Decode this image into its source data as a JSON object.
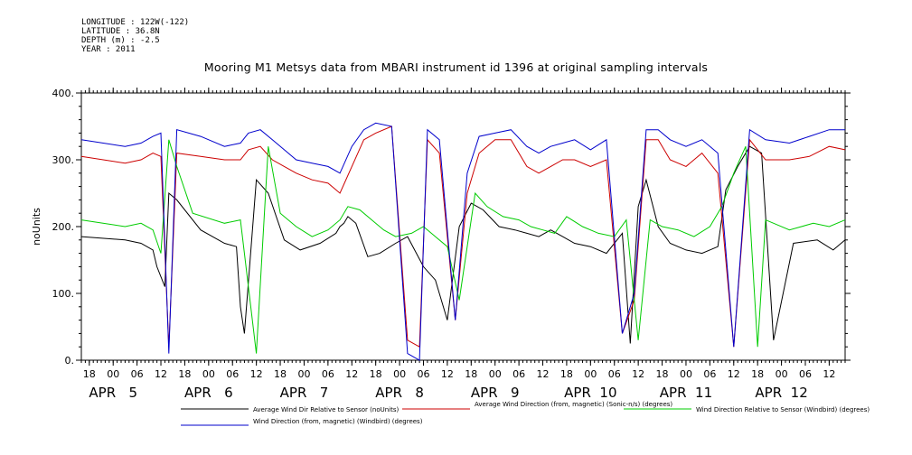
{
  "header": {
    "longitude": "LONGITUDE : 122W(-122)",
    "latitude": "LATITUDE : 36.8N",
    "depth": "DEPTH (m) : -2.5",
    "year": "YEAR : 2011",
    "title": "Mooring M1 Metsys data from MBARI instrument id 1396 at original sampling intervals"
  },
  "chart_data": {
    "type": "line",
    "title": "Mooring M1 Metsys data from MBARI instrument id 1396 at original sampling intervals",
    "ylabel": "noUnits",
    "xlabel": "",
    "ylim": [
      0,
      400
    ],
    "yticks": [
      0,
      100,
      200,
      300,
      400
    ],
    "ytick_labels": [
      "0.",
      "100.",
      "200.",
      "300.",
      "400."
    ],
    "xlim_hours": [
      "2011-04-04T16:00",
      "2011-04-12T16:00"
    ],
    "hour_tick_labels": [
      "18",
      "00",
      "06",
      "12",
      "18",
      "00",
      "06",
      "12",
      "18",
      "00",
      "06",
      "12",
      "18",
      "00",
      "06",
      "12",
      "18",
      "00",
      "06",
      "12",
      "18",
      "00",
      "06",
      "12",
      "18",
      "00",
      "06",
      "12",
      "18",
      "00",
      "06",
      "12"
    ],
    "date_labels": [
      {
        "text": "APR   5",
        "x": "2011-04-05T00:00"
      },
      {
        "text": "APR   6",
        "x": "2011-04-06T00:00"
      },
      {
        "text": "APR   7",
        "x": "2011-04-07T00:00"
      },
      {
        "text": "APR   8",
        "x": "2011-04-08T00:00"
      },
      {
        "text": "APR   9",
        "x": "2011-04-09T00:00"
      },
      {
        "text": "APR  10",
        "x": "2011-04-10T00:00"
      },
      {
        "text": "APR  11",
        "x": "2011-04-11T00:00"
      },
      {
        "text": "APR  12",
        "x": "2011-04-12T00:00"
      }
    ],
    "grid": false,
    "legend_position": "bottom",
    "series": [
      {
        "name": "Average Wind Dir Relative to Sensor (noUnits)",
        "color": "#000000",
        "x": [
          "2011-04-04T16:00",
          "2011-04-05T03:00",
          "2011-04-05T07:00",
          "2011-04-05T10:00",
          "2011-04-05T11:00",
          "2011-04-05T13:00",
          "2011-04-05T14:00",
          "2011-04-05T16:00",
          "2011-04-05T22:00",
          "2011-04-06T04:00",
          "2011-04-06T07:00",
          "2011-04-06T08:00",
          "2011-04-06T09:00",
          "2011-04-06T12:00",
          "2011-04-06T15:00",
          "2011-04-06T19:00",
          "2011-04-06T23:00",
          "2011-04-07T04:00",
          "2011-04-07T08:00",
          "2011-04-07T09:00",
          "2011-04-07T10:00",
          "2011-04-07T11:00",
          "2011-04-07T13:00",
          "2011-04-07T16:00",
          "2011-04-07T19:00",
          "2011-04-07T23:00",
          "2011-04-08T02:00",
          "2011-04-08T06:00",
          "2011-04-08T09:00",
          "2011-04-08T12:00",
          "2011-04-08T15:00",
          "2011-04-08T18:00",
          "2011-04-08T21:00",
          "2011-04-09T01:00",
          "2011-04-09T05:00",
          "2011-04-09T08:00",
          "2011-04-09T11:00",
          "2011-04-09T14:00",
          "2011-04-09T17:00",
          "2011-04-09T20:00",
          "2011-04-10T00:00",
          "2011-04-10T04:00",
          "2011-04-10T08:00",
          "2011-04-10T10:00",
          "2011-04-10T12:00",
          "2011-04-10T14:00",
          "2011-04-10T17:00",
          "2011-04-10T20:00",
          "2011-04-11T00:00",
          "2011-04-11T04:00",
          "2011-04-11T08:00",
          "2011-04-11T10:00",
          "2011-04-11T13:00",
          "2011-04-11T16:00",
          "2011-04-11T19:00",
          "2011-04-11T22:00",
          "2011-04-12T03:00",
          "2011-04-12T09:00",
          "2011-04-12T13:00",
          "2011-04-12T16:00"
        ],
        "values": [
          185,
          180,
          175,
          165,
          140,
          110,
          250,
          240,
          195,
          175,
          170,
          80,
          40,
          270,
          250,
          180,
          165,
          175,
          190,
          200,
          205,
          215,
          205,
          155,
          160,
          175,
          185,
          140,
          120,
          60,
          200,
          235,
          225,
          200,
          195,
          190,
          185,
          195,
          185,
          175,
          170,
          160,
          190,
          25,
          230,
          270,
          200,
          175,
          165,
          160,
          170,
          255,
          290,
          320,
          310,
          30,
          175,
          180,
          165,
          180
        ]
      },
      {
        "name": "Average Wind Direction (from, magnetic) (Sonic-n/s) (degrees)",
        "color": "#cc0000",
        "x": [
          "2011-04-04T16:00",
          "2011-04-05T03:00",
          "2011-04-05T07:00",
          "2011-04-05T10:00",
          "2011-04-05T12:00",
          "2011-04-05T14:00",
          "2011-04-05T16:00",
          "2011-04-05T22:00",
          "2011-04-06T04:00",
          "2011-04-06T08:00",
          "2011-04-06T10:00",
          "2011-04-06T13:00",
          "2011-04-06T16:00",
          "2011-04-06T19:00",
          "2011-04-06T22:00",
          "2011-04-07T02:00",
          "2011-04-07T06:00",
          "2011-04-07T09:00",
          "2011-04-07T12:00",
          "2011-04-07T15:00",
          "2011-04-07T18:00",
          "2011-04-07T22:00",
          "2011-04-08T02:00",
          "2011-04-08T05:00",
          "2011-04-08T07:00",
          "2011-04-08T10:00",
          "2011-04-08T14:00",
          "2011-04-08T17:00",
          "2011-04-08T20:00",
          "2011-04-09T00:00",
          "2011-04-09T04:00",
          "2011-04-09T08:00",
          "2011-04-09T11:00",
          "2011-04-09T14:00",
          "2011-04-09T17:00",
          "2011-04-09T20:00",
          "2011-04-10T00:00",
          "2011-04-10T04:00",
          "2011-04-10T08:00",
          "2011-04-10T11:00",
          "2011-04-10T14:00",
          "2011-04-10T17:00",
          "2011-04-10T20:00",
          "2011-04-11T00:00",
          "2011-04-11T04:00",
          "2011-04-11T08:00",
          "2011-04-11T12:00",
          "2011-04-11T16:00",
          "2011-04-11T20:00",
          "2011-04-12T02:00",
          "2011-04-12T07:00",
          "2011-04-12T12:00",
          "2011-04-12T16:00"
        ],
        "values": [
          305,
          295,
          300,
          310,
          305,
          20,
          310,
          305,
          300,
          300,
          315,
          320,
          300,
          290,
          280,
          270,
          265,
          250,
          290,
          330,
          340,
          350,
          30,
          20,
          330,
          310,
          60,
          250,
          310,
          330,
          330,
          290,
          280,
          290,
          300,
          300,
          290,
          300,
          40,
          90,
          330,
          330,
          300,
          290,
          310,
          280,
          20,
          330,
          300,
          300,
          305,
          320,
          315
        ]
      },
      {
        "name": "Wind Direction Relative to Sensor (Windbird) (degrees)",
        "color": "#00cc00",
        "x": [
          "2011-04-04T16:00",
          "2011-04-05T03:00",
          "2011-04-05T07:00",
          "2011-04-05T10:00",
          "2011-04-05T12:00",
          "2011-04-05T14:00",
          "2011-04-05T16:00",
          "2011-04-05T20:00",
          "2011-04-06T04:00",
          "2011-04-06T08:00",
          "2011-04-06T09:00",
          "2011-04-06T12:00",
          "2011-04-06T15:00",
          "2011-04-06T18:00",
          "2011-04-06T22:00",
          "2011-04-07T02:00",
          "2011-04-07T06:00",
          "2011-04-07T09:00",
          "2011-04-07T11:00",
          "2011-04-07T14:00",
          "2011-04-07T17:00",
          "2011-04-07T20:00",
          "2011-04-07T23:00",
          "2011-04-08T03:00",
          "2011-04-08T06:00",
          "2011-04-08T09:00",
          "2011-04-08T12:00",
          "2011-04-08T15:00",
          "2011-04-08T19:00",
          "2011-04-08T22:00",
          "2011-04-09T02:00",
          "2011-04-09T06:00",
          "2011-04-09T09:00",
          "2011-04-09T12:00",
          "2011-04-09T15:00",
          "2011-04-09T18:00",
          "2011-04-09T22:00",
          "2011-04-10T02:00",
          "2011-04-10T06:00",
          "2011-04-10T09:00",
          "2011-04-10T12:00",
          "2011-04-10T15:00",
          "2011-04-10T18:00",
          "2011-04-10T22:00",
          "2011-04-11T02:00",
          "2011-04-11T06:00",
          "2011-04-11T09:00",
          "2011-04-11T12:00",
          "2011-04-11T15:00",
          "2011-04-11T18:00",
          "2011-04-11T20:00",
          "2011-04-12T02:00",
          "2011-04-12T08:00",
          "2011-04-12T12:00",
          "2011-04-12T16:00"
        ],
        "values": [
          210,
          200,
          205,
          195,
          160,
          330,
          290,
          220,
          205,
          210,
          160,
          10,
          320,
          220,
          200,
          185,
          195,
          210,
          230,
          225,
          210,
          195,
          185,
          190,
          200,
          185,
          170,
          90,
          250,
          230,
          215,
          210,
          200,
          195,
          190,
          215,
          200,
          190,
          185,
          210,
          30,
          210,
          200,
          195,
          185,
          200,
          230,
          280,
          320,
          20,
          210,
          195,
          205,
          200,
          210
        ]
      },
      {
        "name": "Wind Direction (from, magnetic) (Windbird) (degrees)",
        "color": "#0000cc",
        "x": [
          "2011-04-04T16:00",
          "2011-04-05T03:00",
          "2011-04-05T07:00",
          "2011-04-05T10:00",
          "2011-04-05T12:00",
          "2011-04-05T14:00",
          "2011-04-05T16:00",
          "2011-04-05T22:00",
          "2011-04-06T04:00",
          "2011-04-06T08:00",
          "2011-04-06T10:00",
          "2011-04-06T13:00",
          "2011-04-06T16:00",
          "2011-04-06T19:00",
          "2011-04-06T22:00",
          "2011-04-07T02:00",
          "2011-04-07T06:00",
          "2011-04-07T09:00",
          "2011-04-07T12:00",
          "2011-04-07T15:00",
          "2011-04-07T18:00",
          "2011-04-07T22:00",
          "2011-04-08T02:00",
          "2011-04-08T05:00",
          "2011-04-08T07:00",
          "2011-04-08T10:00",
          "2011-04-08T14:00",
          "2011-04-08T17:00",
          "2011-04-08T20:00",
          "2011-04-09T00:00",
          "2011-04-09T04:00",
          "2011-04-09T08:00",
          "2011-04-09T11:00",
          "2011-04-09T14:00",
          "2011-04-09T17:00",
          "2011-04-09T20:00",
          "2011-04-10T00:00",
          "2011-04-10T04:00",
          "2011-04-10T08:00",
          "2011-04-10T11:00",
          "2011-04-10T14:00",
          "2011-04-10T17:00",
          "2011-04-10T20:00",
          "2011-04-11T00:00",
          "2011-04-11T04:00",
          "2011-04-11T08:00",
          "2011-04-11T12:00",
          "2011-04-11T16:00",
          "2011-04-11T20:00",
          "2011-04-12T02:00",
          "2011-04-12T07:00",
          "2011-04-12T12:00",
          "2011-04-12T16:00"
        ],
        "values": [
          330,
          320,
          325,
          335,
          340,
          10,
          345,
          335,
          320,
          325,
          340,
          345,
          330,
          315,
          300,
          295,
          290,
          280,
          320,
          345,
          355,
          350,
          10,
          0,
          345,
          330,
          60,
          280,
          335,
          340,
          345,
          320,
          310,
          320,
          325,
          330,
          315,
          330,
          40,
          100,
          345,
          345,
          330,
          320,
          330,
          310,
          20,
          345,
          330,
          325,
          335,
          345,
          345
        ]
      }
    ]
  }
}
